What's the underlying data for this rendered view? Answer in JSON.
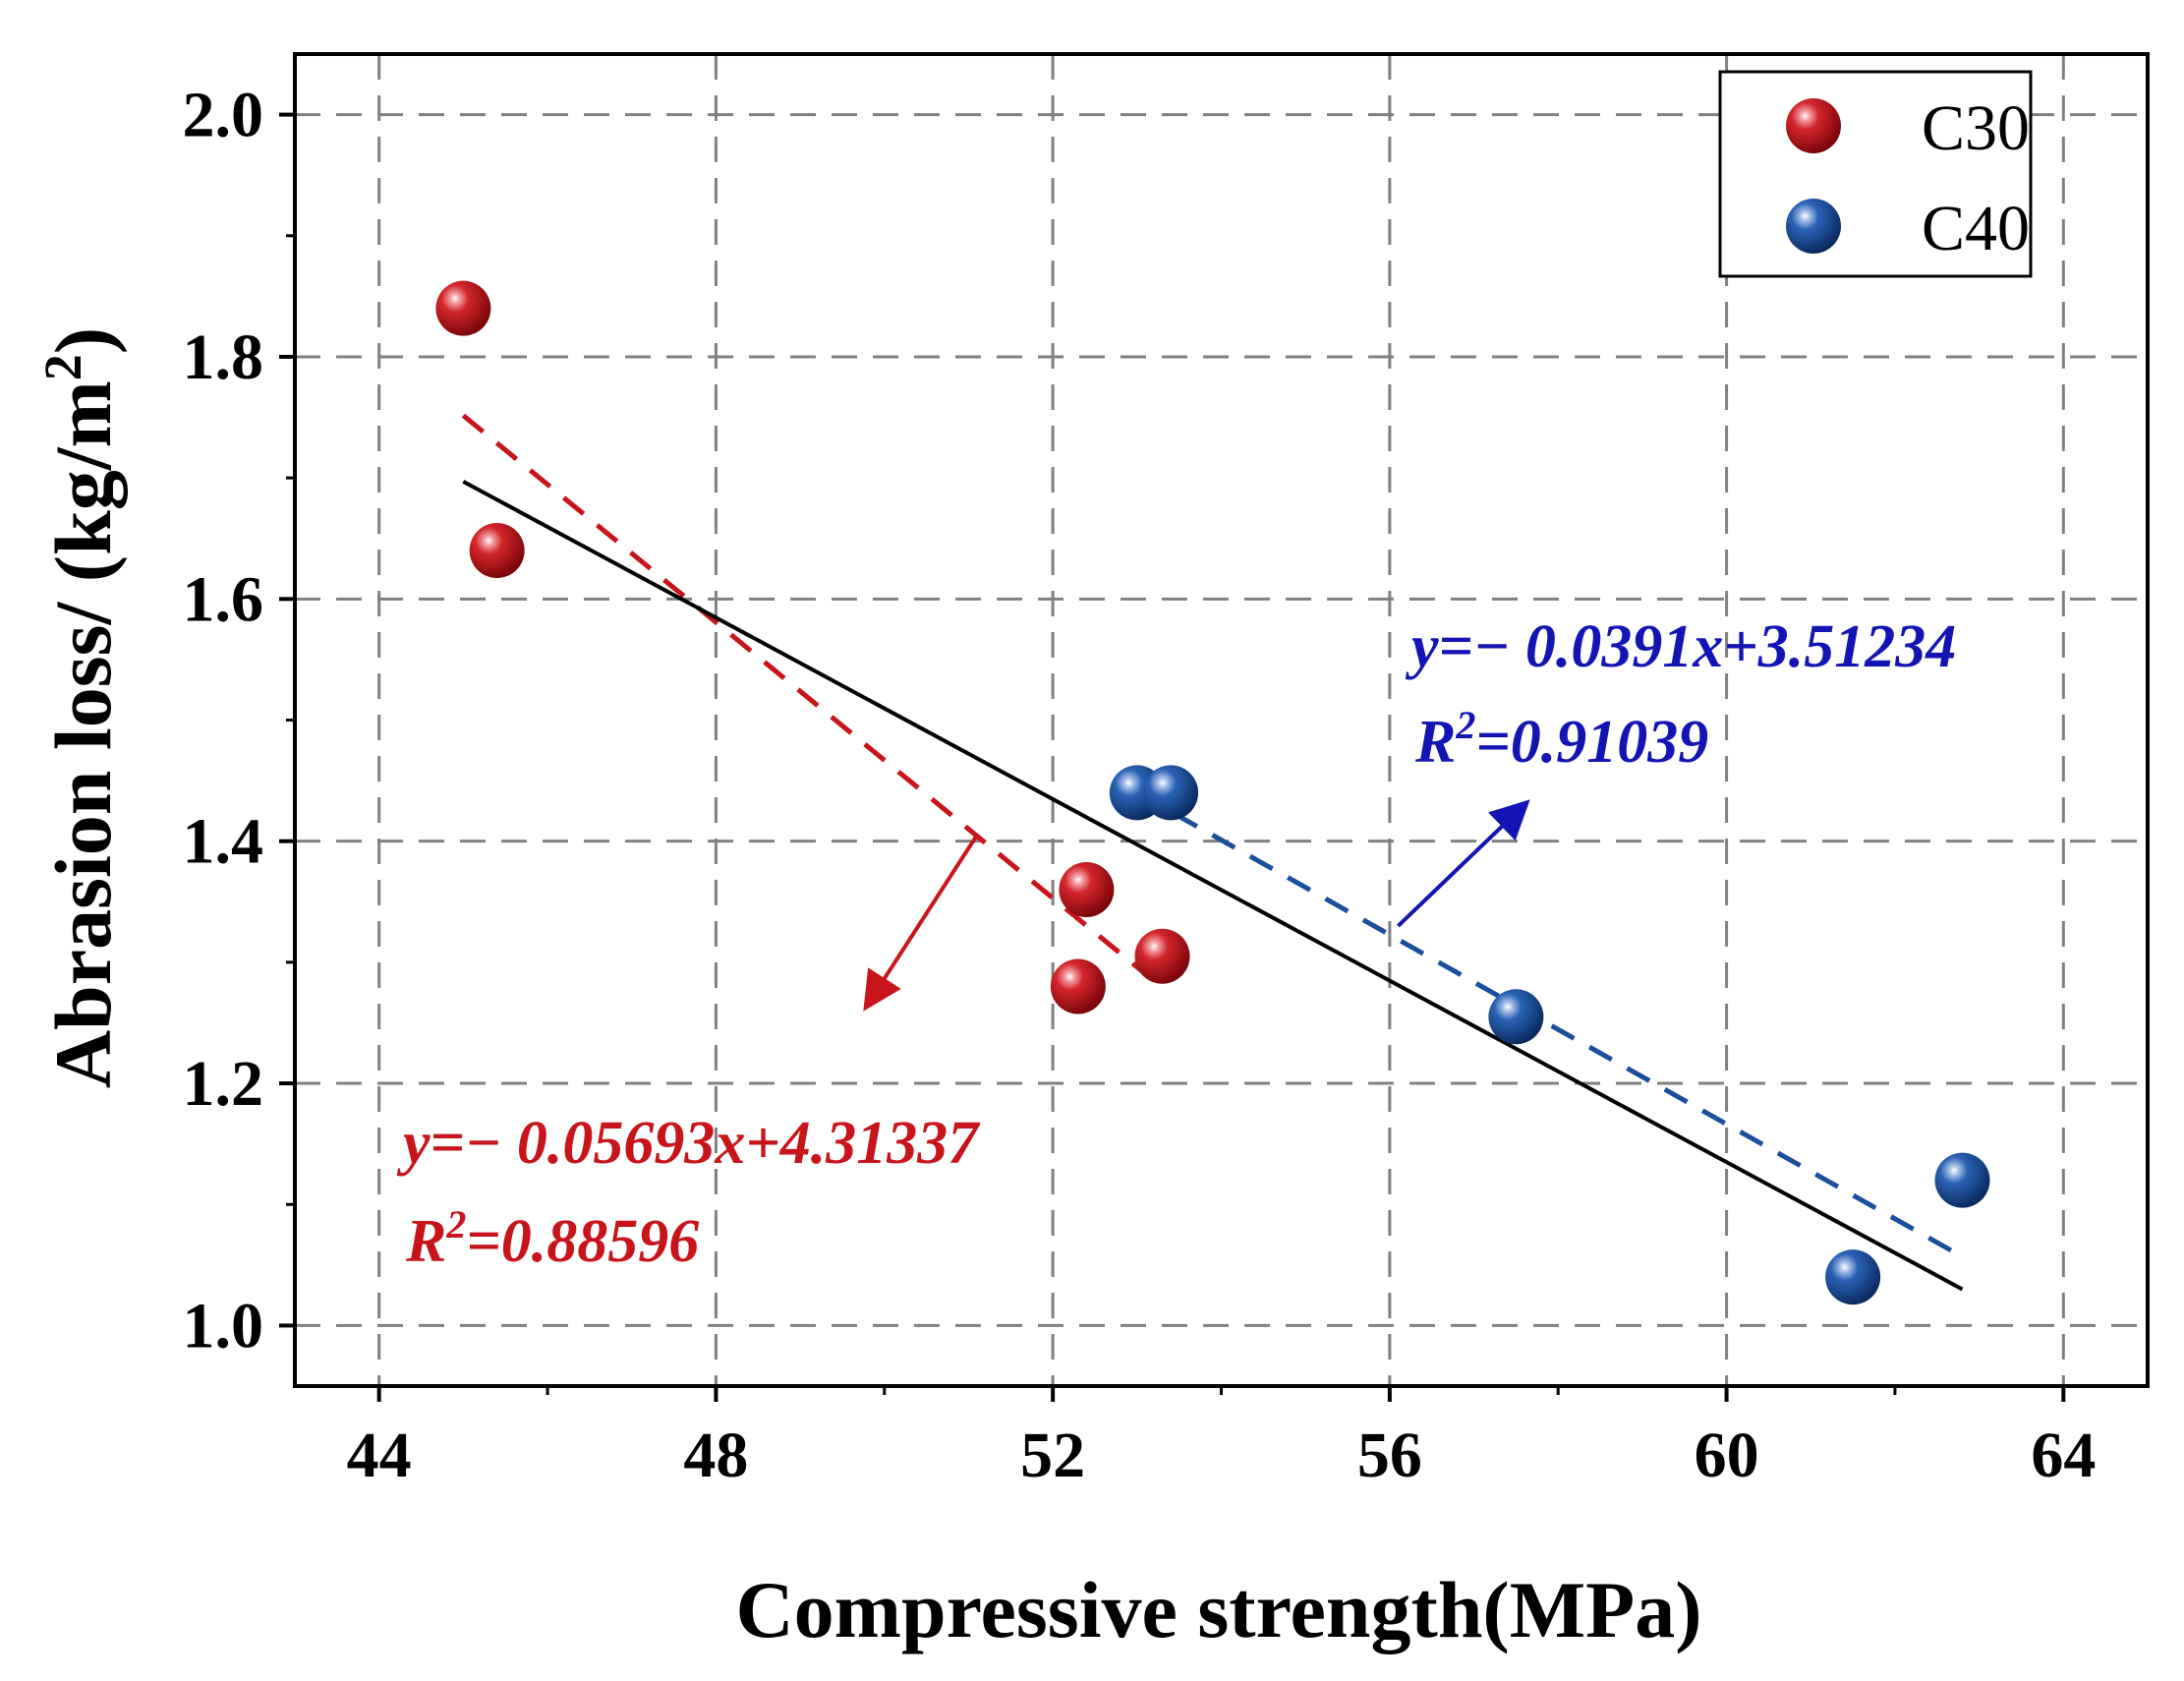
{
  "chart_data": {
    "type": "scatter",
    "xlabel": "Compressive strength(MPa)",
    "ylabel_main": "Abrasion loss/ (kg/m",
    "ylabel_sup": "2",
    "ylabel_tail": ")",
    "xlim": [
      43,
      65
    ],
    "ylim": [
      0.95,
      2.05
    ],
    "xticks": [
      44,
      48,
      52,
      56,
      60,
      64
    ],
    "xtick_labels": [
      "44",
      "48",
      "52",
      "56",
      "60",
      "64"
    ],
    "yticks": [
      1.0,
      1.2,
      1.4,
      1.6,
      1.8,
      2.0
    ],
    "ytick_labels": [
      "1.0",
      "1.2",
      "1.4",
      "1.6",
      "1.8",
      "2.0"
    ],
    "grid": true,
    "legend_position": "top-right",
    "series": [
      {
        "name": "C30",
        "color": "#c8141b",
        "points": [
          {
            "x": 45.0,
            "y": 1.84
          },
          {
            "x": 45.4,
            "y": 1.64
          },
          {
            "x": 52.4,
            "y": 1.36
          },
          {
            "x": 52.3,
            "y": 1.28
          },
          {
            "x": 53.3,
            "y": 1.305
          }
        ],
        "fit": {
          "slope": -0.05693,
          "intercept": 4.31337,
          "x_range": [
            45.0,
            53.3
          ],
          "dash": "dashed"
        },
        "equation_label": "y=− 0.05693x+4.31337",
        "r2_prefix": "R",
        "r2_sup": "2",
        "r2_value": "=0.88596",
        "arrow": {
          "from": [
            51.1,
            1.405
          ],
          "to": [
            49.8,
            1.265
          ]
        }
      },
      {
        "name": "C40",
        "color": "#1a4f9c",
        "points": [
          {
            "x": 53.0,
            "y": 1.44
          },
          {
            "x": 53.4,
            "y": 1.44
          },
          {
            "x": 57.5,
            "y": 1.255
          },
          {
            "x": 61.5,
            "y": 1.04
          },
          {
            "x": 62.8,
            "y": 1.12
          }
        ],
        "fit": {
          "slope": -0.0391,
          "intercept": 3.51234,
          "x_range": [
            53.0,
            62.8
          ],
          "dash": "dashed"
        },
        "equation_label": "y=− 0.0391x+3.51234",
        "r2_prefix": "R",
        "r2_sup": "2",
        "r2_value": "=0.91039",
        "arrow": {
          "from": [
            56.1,
            1.33
          ],
          "to": [
            57.6,
            1.43
          ]
        }
      }
    ],
    "overall_fit": {
      "x_range": [
        45.0,
        62.8
      ],
      "y_range": [
        1.697,
        1.03
      ],
      "color": "#000000"
    }
  },
  "colors": {
    "c30": "#c8141b",
    "c40": "#1a4f9c",
    "c40_text": "#1414b4",
    "grid": "#808080",
    "fit_all": "#000000"
  }
}
